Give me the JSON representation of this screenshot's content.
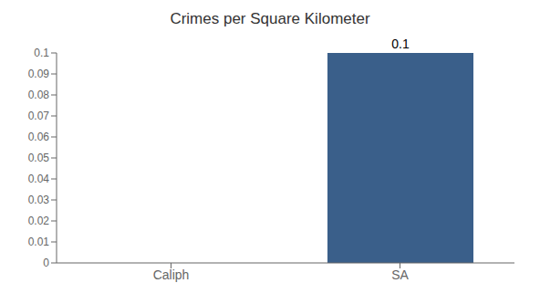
{
  "chart_data": {
    "type": "bar",
    "title": "Crimes per Square Kilometer",
    "categories": [
      "Caliph",
      "SA"
    ],
    "values": [
      0.0,
      0.1
    ],
    "color": "#3a5f8a",
    "ylim": [
      0,
      0.1
    ],
    "yticks": [
      0,
      0.01,
      0.02,
      0.03,
      0.04,
      0.05,
      0.06,
      0.07,
      0.08,
      0.09,
      0.1
    ],
    "grid": false,
    "data_labels": true
  }
}
